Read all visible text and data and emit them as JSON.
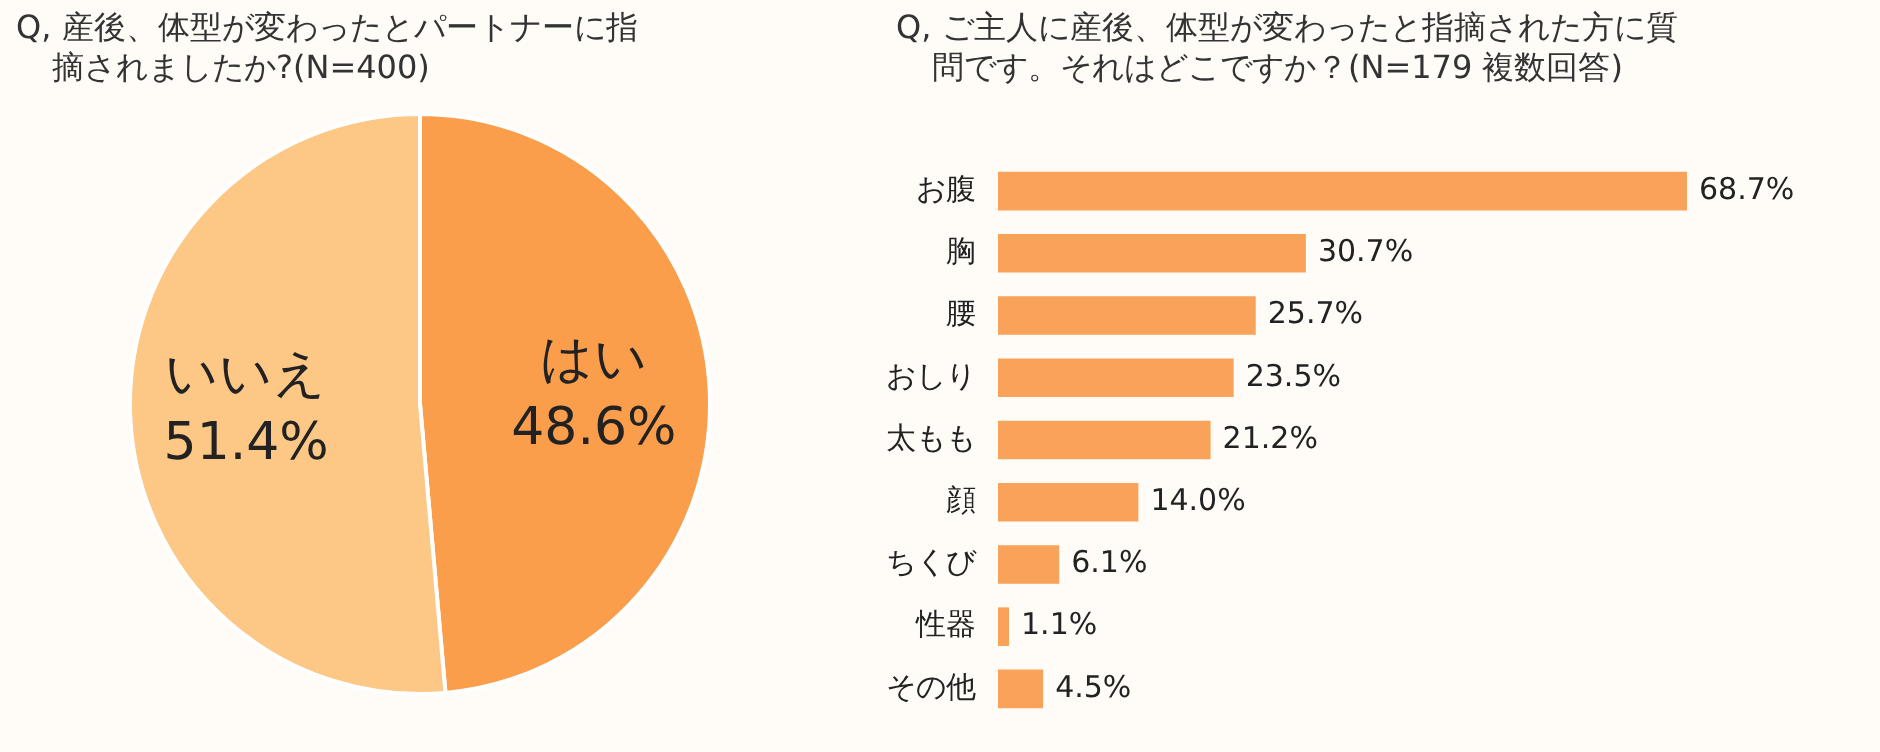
{
  "chart_data": [
    {
      "type": "pie",
      "title": "Q, 産後、体型が変わったとパートナーに指摘されましたか?(N=400)",
      "categories": [
        "はい",
        "いいえ"
      ],
      "values": [
        48.6,
        51.4
      ],
      "colors": [
        "#fb9e4b",
        "#fdc785"
      ],
      "value_labels": [
        "48.6%",
        "51.4%"
      ]
    },
    {
      "type": "bar",
      "orientation": "horizontal",
      "tick_labels": "y",
      "title": "Q, ご主人に産後、体型が変わったと指摘された方に質問です。それはどこですか？(N=179 複数回答)",
      "categories": [
        "お腹",
        "胸",
        "腰",
        "おしり",
        "太もも",
        "顔",
        "ちくび",
        "性器",
        "その他"
      ],
      "values": [
        68.7,
        30.7,
        25.7,
        23.5,
        21.2,
        14.0,
        6.1,
        1.1,
        4.5
      ],
      "color": "#f9a25a",
      "value_labels": [
        "68.7%",
        "30.7%",
        "25.7%",
        "23.5%",
        "21.2%",
        "14.0%",
        "6.1%",
        "1.1%",
        "4.5%"
      ]
    }
  ]
}
